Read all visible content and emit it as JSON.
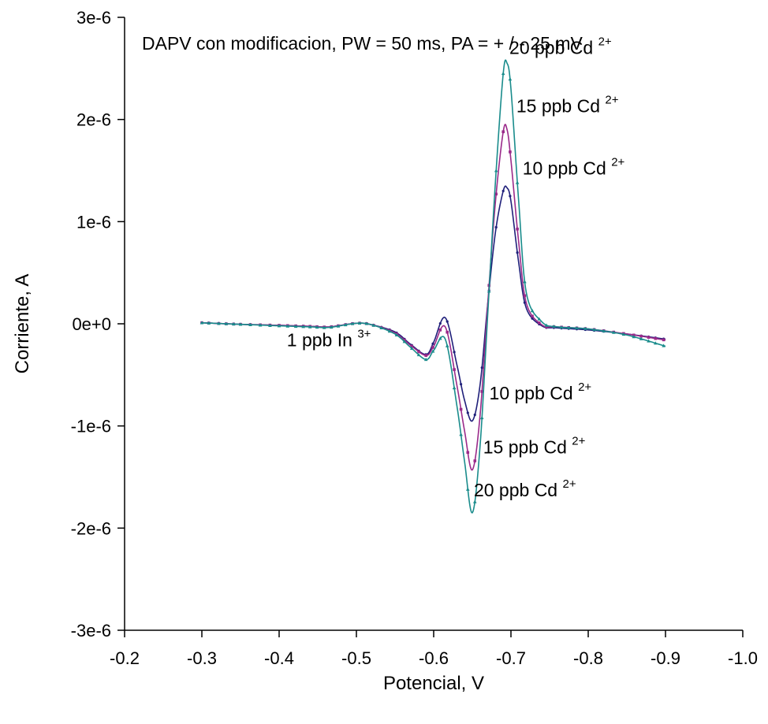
{
  "chart_data": {
    "type": "line",
    "title": "DAPV con modificacion, PW = 50 ms, PA = + / - 25 mV",
    "xlabel": "Potencial, V",
    "ylabel": "Corriente, A",
    "xlim": [
      -0.2,
      -1.0
    ],
    "ylim": [
      3e-06,
      -3e-06
    ],
    "x_ticks": [
      -0.2,
      -0.3,
      -0.4,
      -0.5,
      -0.6,
      -0.7,
      -0.8,
      -0.9,
      -1.0
    ],
    "x_tick_labels": [
      "-0.2",
      "-0.3",
      "-0.4",
      "-0.5",
      "-0.6",
      "-0.7",
      "-0.8",
      "-0.9",
      "-1.0"
    ],
    "y_ticks": [
      -3e-06,
      -2e-06,
      -1e-06,
      0,
      1e-06,
      2e-06,
      3e-06
    ],
    "y_tick_labels": [
      "-3e-6",
      "-2e-6",
      "-1e-6",
      "0e+0",
      "1e-6",
      "2e-6",
      "3e-6"
    ],
    "grid": false,
    "legend": "none",
    "x": [
      -0.3,
      -0.35,
      -0.4,
      -0.44,
      -0.465,
      -0.5,
      -0.52,
      -0.55,
      -0.57,
      -0.59,
      -0.6,
      -0.615,
      -0.63,
      -0.64,
      -0.65,
      -0.66,
      -0.67,
      -0.68,
      -0.69,
      -0.695,
      -0.7,
      -0.71,
      -0.72,
      -0.74,
      -0.76,
      -0.8,
      -0.85,
      -0.9
    ],
    "series": [
      {
        "color": "#1f1f7a",
        "values": [
          1e-08,
          -5e-09,
          -1.5e-08,
          -2.5e-08,
          -3e-08,
          5e-09,
          -1e-08,
          -8e-08,
          -2e-07,
          -3e-07,
          -1.8e-07,
          6e-08,
          -4e-07,
          -7.5e-07,
          -9.5e-07,
          -6e-07,
          2e-07,
          9e-07,
          1.3e-06,
          1.33e-06,
          1.2e-06,
          6e-07,
          1.5e-07,
          -2e-08,
          -4e-08,
          -6e-08,
          -1e-07,
          -1.5e-07
        ]
      },
      {
        "color": "#9a2a8a",
        "values": [
          1e-08,
          -5e-09,
          -1.5e-08,
          -2.5e-08,
          -3e-08,
          5e-09,
          -1e-08,
          -9e-08,
          -2.1e-07,
          -3.1e-07,
          -2.2e-07,
          -3e-08,
          -6e-07,
          -1.05e-06,
          -1.43e-06,
          -9e-07,
          2e-07,
          1.2e-06,
          1.88e-06,
          1.9e-06,
          1.6e-06,
          8e-07,
          2e-07,
          -1e-08,
          -3e-08,
          -5e-08,
          -1e-07,
          -1.6e-07
        ]
      },
      {
        "color": "#1a8c8c",
        "values": [
          1e-08,
          -5e-09,
          -2e-08,
          -3e-08,
          -3.5e-08,
          5e-09,
          -1e-08,
          -1e-07,
          -2.3e-07,
          -3.5e-07,
          -2.6e-07,
          -1.5e-07,
          -8e-07,
          -1.35e-06,
          -1.85e-06,
          -1.2e-06,
          1e-07,
          1.4e-06,
          2.45e-06,
          2.55e-06,
          2.3e-06,
          1.2e-06,
          3e-07,
          2e-08,
          -3e-08,
          -5e-08,
          -1.1e-07,
          -2.2e-07
        ]
      }
    ],
    "annotations": [
      {
        "text": "1 ppb In",
        "sup": "3+",
        "x": -0.41,
        "y": -2.2e-07
      },
      {
        "text": "20 ppb Cd",
        "sup": "2+",
        "x": -0.652,
        "y": -1.69e-06
      },
      {
        "text": "15 ppb Cd",
        "sup": "2+",
        "x": -0.664,
        "y": -1.27e-06
      },
      {
        "text": "10 ppb Cd",
        "sup": "2+",
        "x": -0.672,
        "y": -7.4e-07
      },
      {
        "text": "10 ppb Cd",
        "sup": "2+",
        "x": -0.715,
        "y": 1.46e-06
      },
      {
        "text": "15 ppb Cd",
        "sup": "2+",
        "x": -0.707,
        "y": 2.07e-06
      },
      {
        "text": "20 ppb Cd",
        "sup": "2+",
        "x": -0.698,
        "y": 2.64e-06
      }
    ]
  }
}
